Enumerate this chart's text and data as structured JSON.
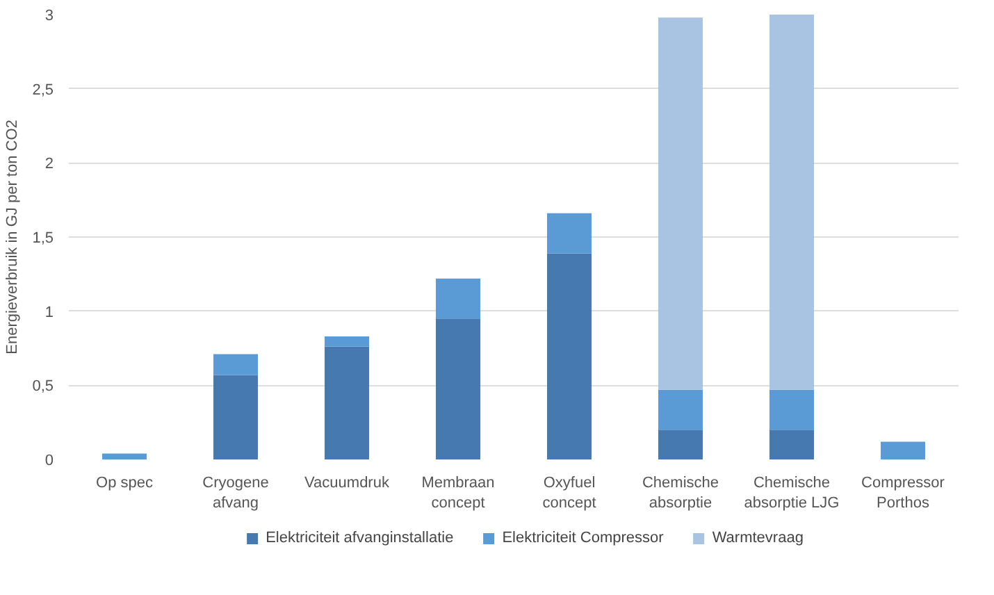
{
  "chart_data": {
    "type": "bar",
    "stacked": true,
    "ylabel": "Energieverbruik in GJ per ton CO2",
    "categories": [
      "Op spec",
      "Cryogene afvang",
      "Vacuumdruk",
      "Membraan concept",
      "Oxyfuel concept",
      "Chemische absorptie",
      "Chemische absorptie LJG",
      "Compressor Porthos"
    ],
    "series": [
      {
        "name": "Elektriciteit afvanginstallatie",
        "color": "#4679b0",
        "values": [
          0,
          0.57,
          0.76,
          0.95,
          1.39,
          0.2,
          0.2,
          0
        ]
      },
      {
        "name": "Elektriciteit Compressor",
        "color": "#5b9bd5",
        "values": [
          0.04,
          0.14,
          0.07,
          0.27,
          0.27,
          0.27,
          0.27,
          0.12
        ]
      },
      {
        "name": "Warmtevraag",
        "color": "#a9c4e2",
        "values": [
          0,
          0,
          0,
          0,
          0,
          2.51,
          2.53,
          0
        ]
      }
    ],
    "ylim": [
      0,
      3
    ],
    "yticks": [
      0,
      {
        "value": 0.5,
        "label": "0,5"
      },
      1,
      {
        "value": 1.5,
        "label": "1,5"
      },
      2,
      {
        "value": 2.5,
        "label": "2,5"
      },
      3
    ],
    "grid": "y",
    "legend": "bottom"
  }
}
